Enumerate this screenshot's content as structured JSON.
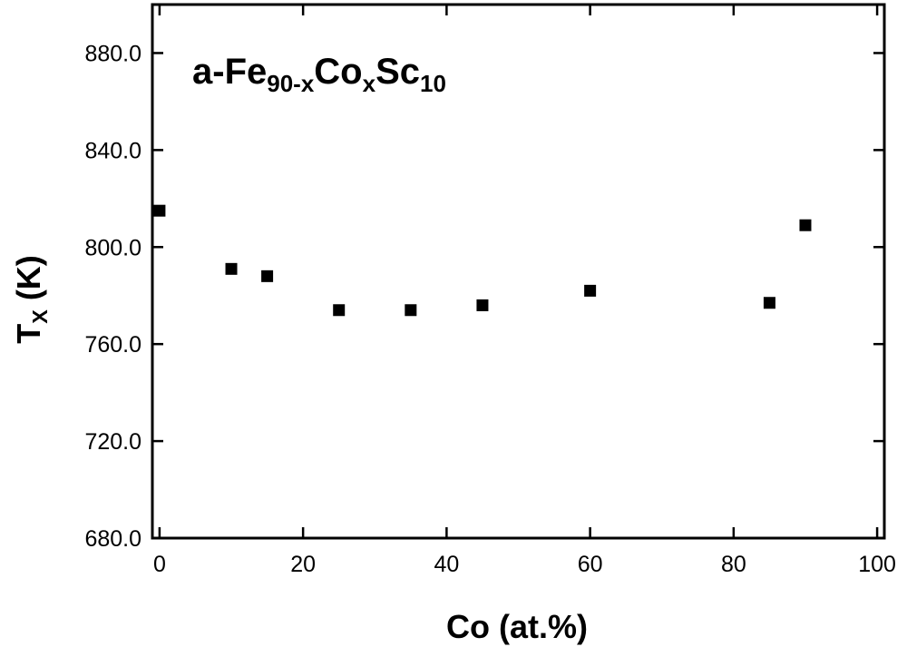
{
  "chart_data": {
    "type": "scatter",
    "title": [
      {
        "text": "a-Fe"
      },
      {
        "text": "90-x",
        "sub": true
      },
      {
        "text": "Co"
      },
      {
        "text": "x",
        "sub": true
      },
      {
        "text": "Sc"
      },
      {
        "text": "10",
        "sub": true
      }
    ],
    "ylabel": [
      {
        "text": "T"
      },
      {
        "text": "X",
        "sub": true
      },
      {
        "text": " (K)"
      }
    ],
    "xlabel": "Co (at.%)",
    "x": [
      0,
      10,
      15,
      25,
      35,
      45,
      60,
      85,
      90
    ],
    "values": [
      815,
      791,
      788,
      774,
      774,
      776,
      782,
      777,
      809
    ],
    "color": "#000000",
    "xlim": [
      -1,
      101
    ],
    "xticks": [
      0,
      20,
      40,
      60,
      80,
      100
    ],
    "ylim": [
      680,
      900
    ],
    "yticks": [
      {
        "value": 680,
        "label": "680.0"
      },
      {
        "value": 720,
        "label": "720.0"
      },
      {
        "value": 760,
        "label": "760.0"
      },
      {
        "value": 800,
        "label": "800.0"
      },
      {
        "value": 840,
        "label": "840.0"
      },
      {
        "value": 880,
        "label": "880.0"
      }
    ]
  }
}
